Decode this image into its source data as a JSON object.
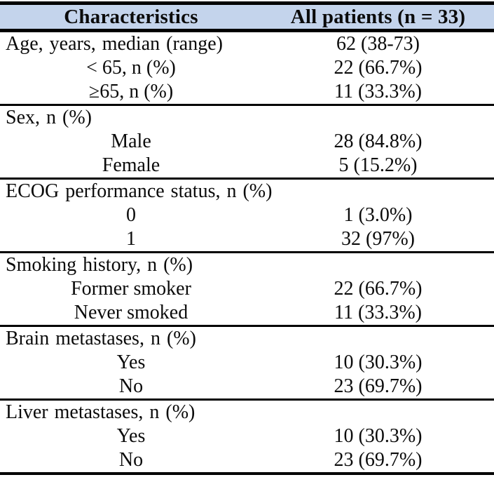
{
  "colors": {
    "header_background": "#c4d4ec",
    "rule": "#000000",
    "text": "#0b0b0b",
    "page_background": "#ffffff"
  },
  "table": {
    "header": {
      "characteristics": "Characteristics",
      "all_patients": "All patients (n = 33)"
    },
    "sections": [
      {
        "name": "age",
        "rows": [
          {
            "label": "Age, years, median (range)",
            "value": "62 (38-73)"
          },
          {
            "label": "< 65, n (%)",
            "value": "22 (66.7%)"
          },
          {
            "label": "≥65, n (%)",
            "value": "11 (33.3%)"
          }
        ]
      },
      {
        "name": "sex",
        "rows": [
          {
            "label": "Sex, n (%)",
            "value": ""
          },
          {
            "label": "Male",
            "value": "28 (84.8%)"
          },
          {
            "label": "Female",
            "value": "5 (15.2%)"
          }
        ]
      },
      {
        "name": "ecog",
        "rows": [
          {
            "label": "ECOG performance status, n (%)",
            "value": ""
          },
          {
            "label": "0",
            "value": "1 (3.0%)"
          },
          {
            "label": "1",
            "value": "32 (97%)"
          }
        ]
      },
      {
        "name": "smoking",
        "rows": [
          {
            "label": "Smoking history, n (%)",
            "value": ""
          },
          {
            "label": "Former smoker",
            "value": "22 (66.7%)"
          },
          {
            "label": "Never smoked",
            "value": "11 (33.3%)"
          }
        ]
      },
      {
        "name": "brain-metastases",
        "rows": [
          {
            "label": "Brain metastases, n (%)",
            "value": ""
          },
          {
            "label": "Yes",
            "value": "10 (30.3%)"
          },
          {
            "label": "No",
            "value": "23 (69.7%)"
          }
        ]
      },
      {
        "name": "liver-metastases",
        "rows": [
          {
            "label": "Liver metastases, n (%)",
            "value": ""
          },
          {
            "label": "Yes",
            "value": "10 (30.3%)"
          },
          {
            "label": "No",
            "value": "23 (69.7%)"
          }
        ]
      }
    ]
  }
}
